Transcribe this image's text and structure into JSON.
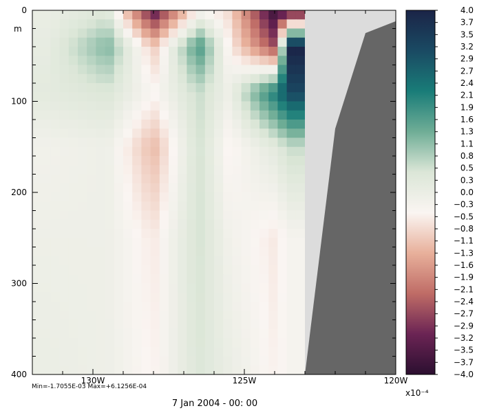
{
  "chart_data": {
    "type": "heatmap",
    "title": "7 Jan 2004 - 00: 00",
    "stats": "Min=-1.7055E-03  Max=+6.1256E-04",
    "x_axis": {
      "range": [
        -132.0,
        -120.0
      ],
      "ticks": [
        -130,
        -125,
        -120
      ],
      "tick_labels": [
        "130W",
        "125W",
        "120W"
      ]
    },
    "y_axis": {
      "label": "m",
      "range": [
        0,
        400
      ],
      "inverted": true,
      "ticks": [
        0,
        100,
        200,
        300,
        400
      ],
      "tick_labels": [
        "0",
        "100",
        "200",
        "300",
        "400"
      ]
    },
    "colorbar": {
      "multiplier": "x10⁻⁴",
      "range": [
        -4.0,
        4.0
      ],
      "tick_labels": [
        "4.0",
        "3.7",
        "3.5",
        "3.2",
        "2.9",
        "2.7",
        "2.4",
        "2.1",
        "1.9",
        "1.6",
        "1.3",
        "1.1",
        "0.8",
        "0.5",
        "0.3",
        "0.0",
        "−0.3",
        "−0.5",
        "−0.8",
        "−1.1",
        "−1.3",
        "−1.6",
        "−1.9",
        "−2.1",
        "−2.4",
        "−2.7",
        "−2.9",
        "−3.2",
        "−3.5",
        "−3.7",
        "−4.0"
      ],
      "colors": [
        "#1b2447",
        "#1a4a63",
        "#197c78",
        "#6fad96",
        "#dbe6d7",
        "#faf5f2",
        "#e8b09b",
        "#bf6c66",
        "#6b2454",
        "#2b0f30"
      ]
    },
    "grid": true,
    "data_region_x_max": -123.0,
    "topography": {
      "color": "#666666",
      "x": [
        -123.0,
        -122.0,
        -121.0,
        -120.0
      ],
      "depth": [
        400,
        130,
        25,
        12
      ]
    },
    "missing_color": "#dcdcdc",
    "x": [
      -131.5,
      -129.5,
      -128.0,
      -126.5,
      -125.5,
      -124.0,
      -123.5
    ],
    "y": [
      0,
      40,
      90,
      150,
      250,
      400
    ],
    "values": [
      [
        0.0,
        0.3,
        -3.4,
        -0.4,
        -0.8,
        -3.8,
        -3.6
      ],
      [
        0.1,
        1.2,
        -1.0,
        1.7,
        -0.5,
        -2.6,
        4.0
      ],
      [
        0.2,
        0.4,
        -0.4,
        0.6,
        -0.1,
        2.2,
        3.2
      ],
      [
        -0.2,
        -0.1,
        -1.2,
        0.5,
        -0.5,
        0.2,
        0.6
      ],
      [
        -0.1,
        -0.1,
        -0.6,
        0.5,
        -0.2,
        -0.6,
        -0.3
      ],
      [
        0.0,
        -0.1,
        -0.5,
        0.4,
        0.0,
        -0.5,
        -0.3
      ]
    ]
  }
}
